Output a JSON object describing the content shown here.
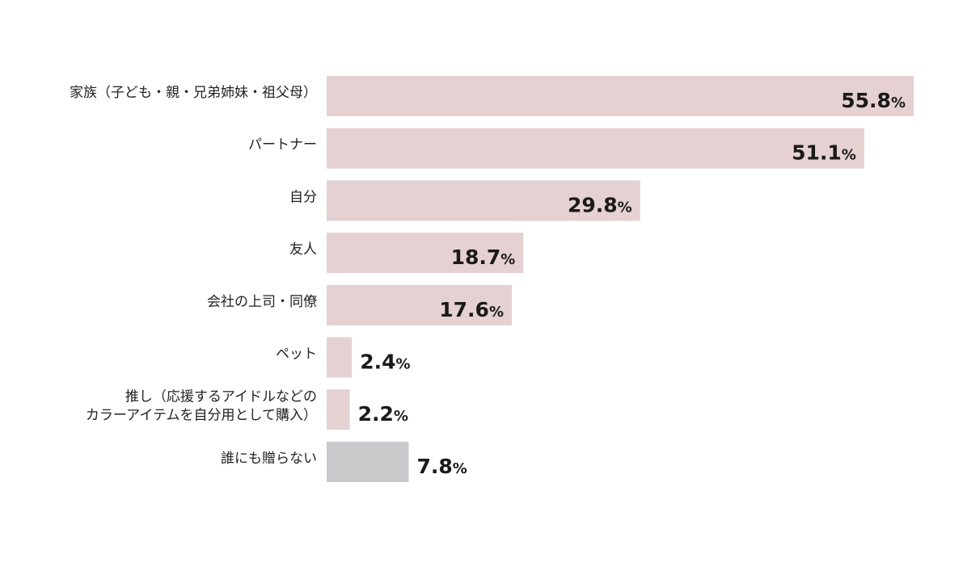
{
  "chart_data": {
    "type": "bar",
    "orientation": "horizontal",
    "categories": [
      [
        "家族（子ども・親・兄弟姉妹・祖父母）"
      ],
      [
        "パートナー"
      ],
      [
        "自分"
      ],
      [
        "友人"
      ],
      [
        "会社の上司・同僚"
      ],
      [
        "ペット"
      ],
      [
        "推し（応援するアイドルなどの",
        "カラーアイテムを自分用として購入）"
      ],
      [
        "誰にも贈らない"
      ]
    ],
    "values": [
      55.8,
      51.1,
      29.8,
      18.7,
      17.6,
      2.4,
      2.2,
      7.8
    ],
    "value_labels": [
      "55.8",
      "51.1",
      "29.8",
      "18.7",
      "17.6",
      "2.4",
      "2.2",
      "7.8"
    ],
    "unit": "%",
    "colors": [
      "#e5d0d2",
      "#e5d0d2",
      "#e5d0d2",
      "#e5d0d2",
      "#e5d0d2",
      "#e5d0d2",
      "#e5d0d2",
      "#c9c9cb"
    ],
    "title": "",
    "xlabel": "",
    "ylabel": "",
    "xlim": [
      0,
      55.8
    ],
    "grid": false,
    "legend": "none"
  }
}
